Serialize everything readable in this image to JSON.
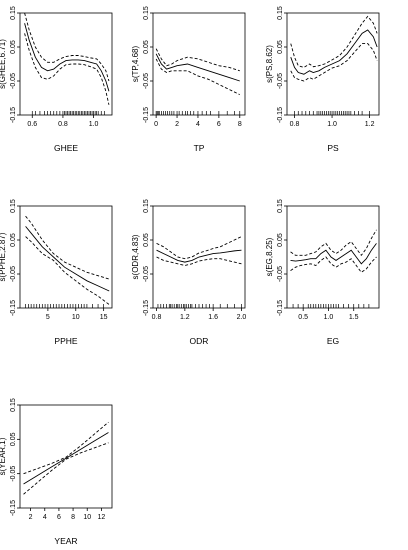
{
  "chart_data": [
    {
      "type": "line",
      "xlabel": "GHEE",
      "ylabel": "s(GHEE,6.71)",
      "xlim": [
        0.52,
        1.12
      ],
      "ylim": [
        -0.15,
        0.15
      ],
      "xticks": [
        0.6,
        0.8,
        1.0
      ],
      "xtick_labels": [
        "0.6",
        "0.8",
        "1.0"
      ],
      "yticks": [
        -0.15,
        -0.05,
        0.05,
        0.15
      ],
      "ytick_labels": [
        "-0.15",
        "-0.05",
        "0.05",
        "0.15"
      ],
      "x": [
        0.55,
        0.58,
        0.62,
        0.66,
        0.7,
        0.74,
        0.78,
        0.82,
        0.86,
        0.9,
        0.94,
        0.98,
        1.02,
        1.05,
        1.08,
        1.1
      ],
      "series": [
        {
          "style": "solid",
          "values": [
            0.12,
            0.07,
            0.02,
            -0.01,
            -0.02,
            -0.015,
            0.0,
            0.01,
            0.012,
            0.012,
            0.01,
            0.005,
            0.0,
            -0.02,
            -0.05,
            -0.08
          ]
        },
        {
          "style": "dashed",
          "values": [
            0.15,
            0.1,
            0.05,
            0.02,
            0.005,
            0.005,
            0.015,
            0.022,
            0.025,
            0.025,
            0.022,
            0.018,
            0.015,
            0.0,
            -0.02,
            -0.05
          ]
        },
        {
          "style": "dashed",
          "values": [
            0.09,
            0.04,
            -0.01,
            -0.04,
            -0.045,
            -0.035,
            -0.015,
            -0.002,
            0.0,
            0.0,
            -0.002,
            -0.008,
            -0.015,
            -0.04,
            -0.08,
            -0.12
          ]
        }
      ],
      "rug": [
        0.6,
        0.62,
        0.65,
        0.68,
        0.7,
        0.72,
        0.74,
        0.76,
        0.78,
        0.8,
        0.81,
        0.82,
        0.83,
        0.84,
        0.85,
        0.86,
        0.87,
        0.88,
        0.89,
        0.9,
        0.91,
        0.92,
        0.93,
        0.94,
        0.95,
        0.96,
        0.97,
        0.98,
        0.99,
        1.0,
        1.01,
        1.02,
        1.03,
        1.05,
        1.07
      ]
    },
    {
      "type": "line",
      "xlabel": "TP",
      "ylabel": "s(TP,4.68)",
      "xlim": [
        -0.3,
        8.5
      ],
      "ylim": [
        -0.15,
        0.15
      ],
      "xticks": [
        0,
        2,
        4,
        6,
        8
      ],
      "xtick_labels": [
        "0",
        "2",
        "4",
        "6",
        "8"
      ],
      "yticks": [
        -0.15,
        -0.05,
        0.05,
        0.15
      ],
      "ytick_labels": [
        "-0.15",
        "-0.05",
        "0.05",
        "0.15"
      ],
      "x": [
        0,
        0.5,
        1,
        1.5,
        2,
        3,
        4,
        5,
        6,
        7,
        8
      ],
      "series": [
        {
          "style": "solid",
          "values": [
            0.03,
            0.0,
            -0.015,
            -0.01,
            -0.005,
            0.0,
            -0.01,
            -0.02,
            -0.03,
            -0.04,
            -0.05
          ]
        },
        {
          "style": "dashed",
          "values": [
            0.045,
            0.015,
            -0.005,
            0.0,
            0.01,
            0.02,
            0.015,
            0.005,
            -0.005,
            -0.01,
            -0.02
          ]
        },
        {
          "style": "dashed",
          "values": [
            0.015,
            -0.015,
            -0.025,
            -0.02,
            -0.02,
            -0.02,
            -0.035,
            -0.045,
            -0.06,
            -0.075,
            -0.09
          ]
        }
      ],
      "rug": [
        0,
        0.1,
        0.2,
        0.3,
        0.5,
        0.7,
        0.9,
        1.1,
        1.3,
        1.5,
        1.7,
        2.0,
        2.2,
        2.5,
        2.8,
        3.0,
        3.3,
        3.6,
        4.0,
        4.4,
        4.8,
        5.2,
        6.0,
        6.8,
        7.5,
        8.0
      ]
    },
    {
      "type": "line",
      "xlabel": "PS",
      "ylabel": "s(PS,8.62)",
      "xlim": [
        0.76,
        1.25
      ],
      "ylim": [
        -0.15,
        0.15
      ],
      "xticks": [
        0.8,
        1.0,
        1.2
      ],
      "xtick_labels": [
        "0.8",
        "1.0",
        "1.2"
      ],
      "yticks": [
        -0.15,
        -0.05,
        0.05,
        0.15
      ],
      "ytick_labels": [
        "-0.15",
        "-0.05",
        "0.05",
        "0.15"
      ],
      "x": [
        0.78,
        0.8,
        0.82,
        0.85,
        0.88,
        0.9,
        0.93,
        0.96,
        1.0,
        1.04,
        1.08,
        1.12,
        1.16,
        1.19,
        1.22,
        1.24
      ],
      "series": [
        {
          "style": "solid",
          "values": [
            0.02,
            -0.01,
            -0.025,
            -0.03,
            -0.02,
            -0.025,
            -0.02,
            -0.01,
            0.0,
            0.01,
            0.03,
            0.06,
            0.09,
            0.1,
            0.08,
            0.05
          ]
        },
        {
          "style": "dashed",
          "values": [
            0.06,
            0.02,
            -0.005,
            -0.01,
            0.0,
            -0.008,
            -0.005,
            0.0,
            0.012,
            0.025,
            0.05,
            0.085,
            0.12,
            0.14,
            0.12,
            0.09
          ]
        },
        {
          "style": "dashed",
          "values": [
            -0.02,
            -0.04,
            -0.045,
            -0.05,
            -0.04,
            -0.045,
            -0.035,
            -0.025,
            -0.012,
            -0.005,
            0.01,
            0.035,
            0.06,
            0.06,
            0.04,
            0.01
          ]
        }
      ],
      "rug": [
        0.8,
        0.82,
        0.84,
        0.86,
        0.88,
        0.9,
        0.92,
        0.93,
        0.94,
        0.95,
        0.96,
        0.97,
        0.98,
        0.99,
        1.0,
        1.01,
        1.02,
        1.03,
        1.04,
        1.05,
        1.06,
        1.07,
        1.08,
        1.09,
        1.1,
        1.12,
        1.14,
        1.16,
        1.2
      ]
    },
    {
      "type": "line",
      "xlabel": "PPHE",
      "ylabel": "s(PPHE,2.87)",
      "xlim": [
        0,
        16.5
      ],
      "ylim": [
        -0.15,
        0.15
      ],
      "xticks": [
        5,
        10,
        15
      ],
      "xtick_labels": [
        "5",
        "10",
        "15"
      ],
      "yticks": [
        -0.15,
        -0.05,
        0.05,
        0.15
      ],
      "ytick_labels": [
        "-0.15",
        "-0.05",
        "0.05",
        "0.15"
      ],
      "x": [
        1,
        2,
        4,
        6,
        8,
        10,
        12,
        14,
        16
      ],
      "series": [
        {
          "style": "solid",
          "values": [
            0.09,
            0.07,
            0.03,
            0.0,
            -0.03,
            -0.05,
            -0.07,
            -0.085,
            -0.1
          ]
        },
        {
          "style": "dashed",
          "values": [
            0.12,
            0.1,
            0.05,
            0.01,
            -0.015,
            -0.03,
            -0.045,
            -0.055,
            -0.065
          ]
        },
        {
          "style": "dashed",
          "values": [
            0.06,
            0.045,
            0.01,
            -0.01,
            -0.045,
            -0.07,
            -0.095,
            -0.115,
            -0.14
          ]
        }
      ],
      "rug": [
        1,
        1.5,
        2,
        2.5,
        3,
        3.5,
        4,
        4.5,
        5,
        5.5,
        6,
        6.5,
        7,
        7.5,
        8,
        8.5,
        9,
        9.5,
        10,
        10.5,
        11,
        11.5,
        12,
        13,
        14,
        15
      ]
    },
    {
      "type": "line",
      "xlabel": "ODR",
      "ylabel": "s(ODR,4.83)",
      "xlim": [
        0.75,
        2.05
      ],
      "ylim": [
        -0.15,
        0.15
      ],
      "xticks": [
        0.8,
        1.2,
        1.6,
        2.0
      ],
      "xtick_labels": [
        "0.8",
        "1.2",
        "1.6",
        "2.0"
      ],
      "yticks": [
        -0.15,
        -0.05,
        0.05,
        0.15
      ],
      "ytick_labels": [
        "-0.15",
        "-0.05",
        "0.05",
        "0.15"
      ],
      "x": [
        0.8,
        0.9,
        1.0,
        1.1,
        1.2,
        1.3,
        1.4,
        1.5,
        1.6,
        1.7,
        1.8,
        1.9,
        2.0
      ],
      "series": [
        {
          "style": "solid",
          "values": [
            0.02,
            0.01,
            0.0,
            -0.01,
            -0.015,
            -0.01,
            0.0,
            0.005,
            0.01,
            0.012,
            0.015,
            0.018,
            0.02
          ]
        },
        {
          "style": "dashed",
          "values": [
            0.04,
            0.03,
            0.015,
            0.0,
            -0.005,
            0.0,
            0.012,
            0.018,
            0.025,
            0.03,
            0.04,
            0.05,
            0.06
          ]
        },
        {
          "style": "dashed",
          "values": [
            0.0,
            -0.01,
            -0.015,
            -0.02,
            -0.025,
            -0.02,
            -0.012,
            -0.008,
            -0.005,
            -0.005,
            -0.01,
            -0.015,
            -0.02
          ]
        }
      ],
      "rug": [
        0.82,
        0.86,
        0.9,
        0.94,
        0.98,
        1.0,
        1.02,
        1.05,
        1.08,
        1.1,
        1.12,
        1.15,
        1.18,
        1.2,
        1.22,
        1.25,
        1.28,
        1.3,
        1.35,
        1.4,
        1.45,
        1.5,
        1.55,
        1.6,
        1.7,
        1.8,
        1.9,
        2.0
      ]
    },
    {
      "type": "line",
      "xlabel": "EG",
      "ylabel": "s(EG,8.25)",
      "xlim": [
        0.18,
        2.0
      ],
      "ylim": [
        -0.15,
        0.15
      ],
      "xticks": [
        0.5,
        1.0,
        1.5
      ],
      "xtick_labels": [
        "0.5",
        "1.0",
        "1.5"
      ],
      "yticks": [
        -0.15,
        -0.05,
        0.05,
        0.15
      ],
      "ytick_labels": [
        "-0.15",
        "-0.05",
        "0.05",
        "0.15"
      ],
      "x": [
        0.25,
        0.35,
        0.45,
        0.55,
        0.65,
        0.75,
        0.85,
        0.95,
        1.05,
        1.15,
        1.25,
        1.35,
        1.45,
        1.55,
        1.65,
        1.75,
        1.85,
        1.95
      ],
      "series": [
        {
          "style": "solid",
          "values": [
            -0.01,
            -0.012,
            -0.01,
            -0.008,
            -0.005,
            -0.005,
            0.01,
            0.02,
            0.0,
            -0.01,
            0.0,
            0.01,
            0.02,
            0.0,
            -0.02,
            -0.005,
            0.02,
            0.04
          ]
        },
        {
          "style": "dashed",
          "values": [
            0.015,
            0.005,
            0.005,
            0.005,
            0.01,
            0.015,
            0.03,
            0.04,
            0.02,
            0.01,
            0.02,
            0.035,
            0.045,
            0.025,
            0.005,
            0.025,
            0.055,
            0.08
          ]
        },
        {
          "style": "dashed",
          "values": [
            -0.04,
            -0.03,
            -0.025,
            -0.022,
            -0.02,
            -0.025,
            -0.01,
            0.0,
            -0.02,
            -0.03,
            -0.02,
            -0.015,
            -0.005,
            -0.025,
            -0.045,
            -0.035,
            -0.015,
            0.0
          ]
        }
      ],
      "rug": [
        0.3,
        0.4,
        0.5,
        0.6,
        0.65,
        0.7,
        0.75,
        0.8,
        0.85,
        0.9,
        0.95,
        1.0,
        1.05,
        1.1,
        1.15,
        1.2,
        1.3,
        1.4,
        1.5,
        1.6,
        1.7,
        1.8
      ]
    },
    {
      "type": "line",
      "xlabel": "YEAR",
      "ylabel": "s(YEAR,1)",
      "xlim": [
        0.5,
        13.5
      ],
      "ylim": [
        -0.15,
        0.15
      ],
      "xticks": [
        2,
        4,
        6,
        8,
        10,
        12
      ],
      "xtick_labels": [
        "2",
        "4",
        "6",
        "8",
        "10",
        "12"
      ],
      "yticks": [
        -0.15,
        -0.05,
        0.05,
        0.15
      ],
      "ytick_labels": [
        "-0.15",
        "-0.05",
        "0.05",
        "0.15"
      ],
      "x": [
        1,
        3,
        5,
        7,
        9,
        11,
        13
      ],
      "series": [
        {
          "style": "solid",
          "values": [
            -0.08,
            -0.055,
            -0.03,
            -0.005,
            0.02,
            0.045,
            0.07
          ]
        },
        {
          "style": "dashed",
          "values": [
            -0.05,
            -0.035,
            -0.02,
            -0.002,
            0.03,
            0.065,
            0.1
          ]
        },
        {
          "style": "dashed",
          "values": [
            -0.11,
            -0.075,
            -0.04,
            -0.008,
            0.01,
            0.025,
            0.04
          ]
        }
      ],
      "rug": []
    }
  ]
}
